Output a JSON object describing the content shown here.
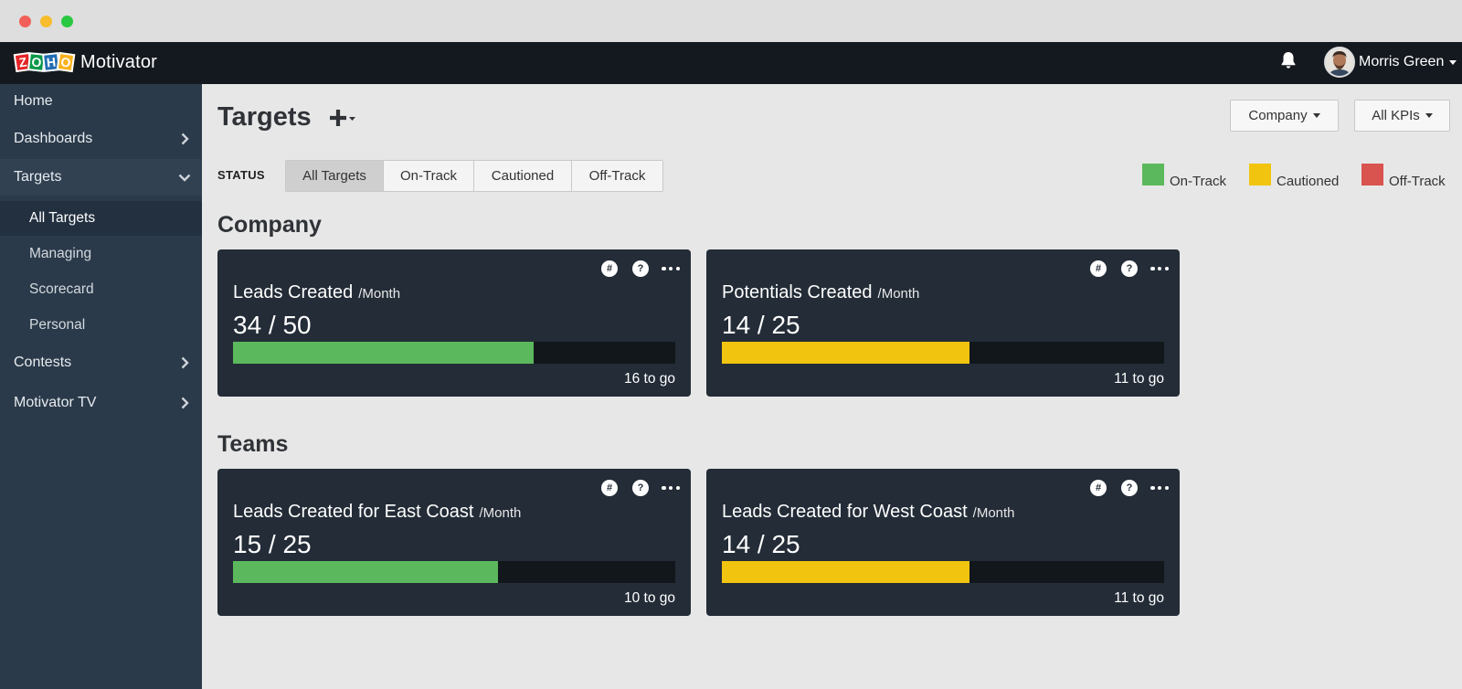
{
  "app": {
    "name": "Motivator",
    "logo_letters": [
      "Z",
      "O",
      "H",
      "O"
    ]
  },
  "header": {
    "user_name": "Morris Green"
  },
  "sidebar": {
    "items": [
      {
        "label": "Home"
      },
      {
        "label": "Dashboards"
      },
      {
        "label": "Targets"
      },
      {
        "label": "All Targets"
      },
      {
        "label": "Managing"
      },
      {
        "label": "Scorecard"
      },
      {
        "label": "Personal"
      },
      {
        "label": "Contests"
      },
      {
        "label": "Motivator TV"
      }
    ]
  },
  "main": {
    "title": "Targets",
    "filters": {
      "company_label": "Company",
      "kpis_label": "All KPIs"
    },
    "status": {
      "label": "STATUS",
      "options": [
        "All Targets",
        "On-Track",
        "Cautioned",
        "Off-Track"
      ],
      "selected": "All Targets"
    },
    "legend": [
      {
        "label": "On-Track",
        "color": "#5cb85c"
      },
      {
        "label": "Cautioned",
        "color": "#f1c40f"
      },
      {
        "label": "Off-Track",
        "color": "#d9534f"
      }
    ],
    "sections": [
      {
        "name": "Company",
        "cards": [
          {
            "title": "Leads Created",
            "period": "/Month",
            "value_text": "34 / 50",
            "progress": 0.68,
            "color": "#5cb85c",
            "to_go": "16 to go"
          },
          {
            "title": "Potentials Created",
            "period": "/Month",
            "value_text": "14 / 25",
            "progress": 0.56,
            "color": "#f1c40f",
            "to_go": "11 to go"
          }
        ]
      },
      {
        "name": "Teams",
        "cards": [
          {
            "title": "Leads Created for East Coast",
            "period": "/Month",
            "value_text": "15 / 25",
            "progress": 0.6,
            "color": "#5cb85c",
            "to_go": "10 to go"
          },
          {
            "title": "Leads Created for West Coast",
            "period": "/Month",
            "value_text": "14 / 25",
            "progress": 0.56,
            "color": "#f1c40f",
            "to_go": "11 to go"
          }
        ]
      }
    ],
    "card_icons": [
      "hash-icon",
      "help-icon",
      "more-icon"
    ]
  }
}
